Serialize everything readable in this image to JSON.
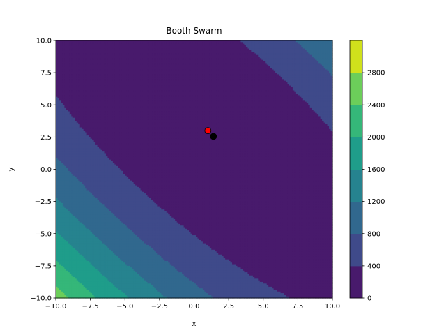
{
  "chart_data": {
    "type": "contourf",
    "title": "Booth Swarm",
    "xlabel": "x",
    "ylabel": "y",
    "xlim": [
      -10,
      10
    ],
    "ylim": [
      -10,
      10
    ],
    "function": "booth",
    "levels": [
      0,
      400,
      800,
      1200,
      1600,
      2000,
      2400,
      2800
    ],
    "colors": [
      "#481a6c",
      "#3f4a8a",
      "#31688e",
      "#26838f",
      "#1f9d8a",
      "#35b779",
      "#6cce5a",
      "#d0e11c"
    ],
    "x_ticks": [
      -10.0,
      -7.5,
      -5.0,
      -2.5,
      0.0,
      2.5,
      5.0,
      7.5,
      10.0
    ],
    "y_ticks": [
      -10.0,
      -7.5,
      -5.0,
      -2.5,
      0.0,
      2.5,
      5.0,
      7.5,
      10.0
    ],
    "x_tick_labels": [
      "−10.0",
      "−7.5",
      "−5.0",
      "−2.5",
      "0.0",
      "2.5",
      "5.0",
      "7.5",
      "10.0"
    ],
    "y_tick_labels": [
      "−10.0",
      "−7.5",
      "−5.0",
      "−2.5",
      "0.0",
      "2.5",
      "5.0",
      "7.5",
      "10.0"
    ],
    "colorbar_ticks": [
      "0",
      "400",
      "800",
      "1200",
      "1600",
      "2000",
      "2400",
      "2800"
    ],
    "points": [
      {
        "x": 1.0,
        "y": 3.0,
        "color": "#ff0000",
        "role": "best"
      },
      {
        "x": 1.4,
        "y": 2.55,
        "color": "#000000",
        "role": "particle"
      }
    ]
  }
}
